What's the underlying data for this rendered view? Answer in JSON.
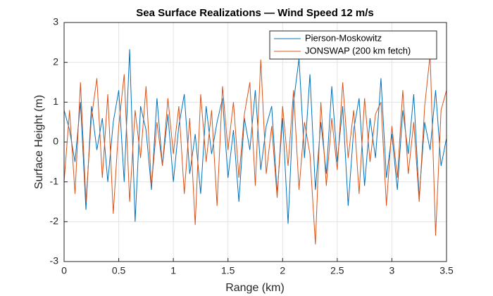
{
  "chart_data": {
    "type": "line",
    "title": "Sea Surface Realizations — Wind Speed 12 m/s",
    "xlabel": "Range (km)",
    "ylabel": "Surface Height (m)",
    "x": [
      0,
      0.05,
      0.1,
      0.15,
      0.2,
      0.25,
      0.3,
      0.35,
      0.4,
      0.45,
      0.5,
      0.55,
      0.6,
      0.65,
      0.7,
      0.75,
      0.8,
      0.85,
      0.9,
      0.95,
      1,
      1.05,
      1.1,
      1.15,
      1.2,
      1.25,
      1.3,
      1.35,
      1.4,
      1.45,
      1.5,
      1.55,
      1.6,
      1.65,
      1.7,
      1.75,
      1.8,
      1.85,
      1.9,
      1.95,
      2,
      2.05,
      2.1,
      2.15,
      2.2,
      2.25,
      2.3,
      2.35,
      2.4,
      2.45,
      2.5,
      2.55,
      2.6,
      2.65,
      2.7,
      2.75,
      2.8,
      2.85,
      2.9,
      2.95,
      3,
      3.05,
      3.1,
      3.15,
      3.2,
      3.25,
      3.3,
      3.35,
      3.4,
      3.45,
      3.5
    ],
    "series": [
      {
        "name": "Pierson-Moskowitz",
        "color": "#0072bd",
        "values": [
          0.8,
          0.3,
          -0.5,
          1.0,
          -1.7,
          0.9,
          -0.2,
          0.6,
          -1.0,
          0.5,
          1.3,
          -1.0,
          2.33,
          -2.0,
          0.9,
          0.3,
          -1.2,
          1.1,
          -0.6,
          0.7,
          -1.0,
          0.4,
          1.2,
          -0.8,
          0.2,
          -1.3,
          0.9,
          -0.3,
          0.5,
          1.1,
          -0.9,
          0.3,
          -1.5,
          0.6,
          -0.2,
          1.3,
          -0.7,
          0.4,
          0.9,
          -1.3,
          0.6,
          -2.05,
          1.0,
          2.1,
          -0.4,
          1.7,
          -1.2,
          0.5,
          -0.8,
          1.4,
          -0.5,
          0.9,
          -1.6,
          0.3,
          1.1,
          -1.1,
          0.6,
          -0.4,
          1.6,
          -0.9,
          0.2,
          -1.2,
          0.8,
          -0.3,
          1.2,
          -1.4,
          0.5,
          -0.2,
          1.3,
          -0.6,
          0.1
        ]
      },
      {
        "name": "JONSWAP (200 km fetch)",
        "color": "#d95319",
        "values": [
          -1.0,
          0.8,
          -1.3,
          1.5,
          -1.5,
          0.6,
          1.6,
          -0.9,
          1.2,
          -1.8,
          0.4,
          1.7,
          -1.5,
          0.8,
          -0.4,
          1.4,
          -1.1,
          0.5,
          -0.6,
          1.1,
          -0.3,
          0.9,
          -1.3,
          0.6,
          -2.08,
          1.2,
          -0.5,
          0.8,
          -1.6,
          1.4,
          -0.2,
          1.0,
          -0.9,
          0.7,
          1.5,
          -1.1,
          2.07,
          -0.8,
          0.4,
          -1.4,
          0.9,
          -0.6,
          1.3,
          -1.2,
          0.5,
          -0.3,
          -2.57,
          1.0,
          -1.1,
          0.6,
          -0.7,
          1.5,
          -0.4,
          0.8,
          -1.3,
          1.1,
          -0.5,
          0.7,
          1.0,
          -1.6,
          0.4,
          -0.9,
          1.3,
          -0.8,
          0.5,
          -1.5,
          0.9,
          2.2,
          -2.35,
          0.8,
          1.3
        ]
      }
    ],
    "xlim": [
      0,
      3.5
    ],
    "xticks": [
      0,
      0.5,
      1,
      1.5,
      2,
      2.5,
      3,
      3.5
    ],
    "ylim": [
      -3,
      3
    ],
    "yticks": [
      -3,
      -2,
      -1,
      0,
      1,
      2,
      3
    ],
    "grid": true,
    "legend": "northeast"
  }
}
